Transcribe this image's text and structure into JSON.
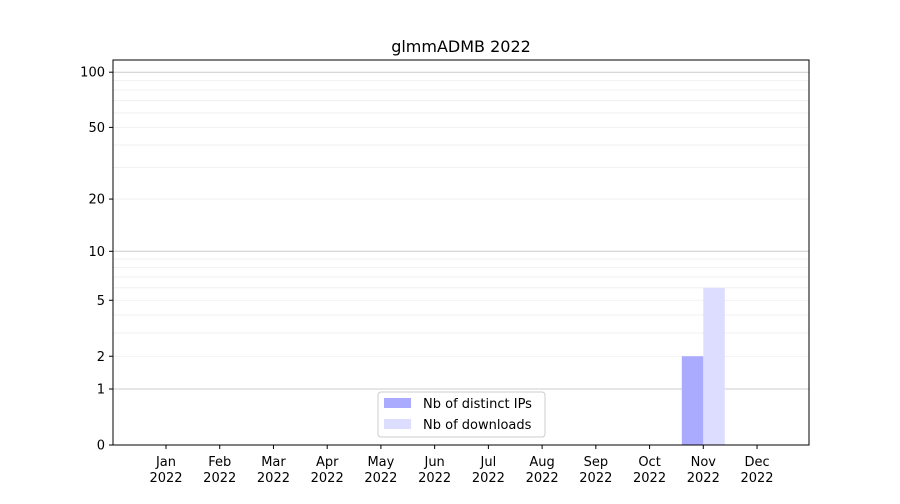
{
  "chart_data": {
    "type": "bar",
    "title": "glmmADMB 2022",
    "xlabel": "",
    "ylabel": "",
    "y_scale": "log(1+y)",
    "ylim": [
      0,
      116
    ],
    "y_ticks": [
      0,
      1,
      2,
      5,
      10,
      20,
      50,
      100
    ],
    "categories": [
      "Jan\n2022",
      "Feb\n2022",
      "Mar\n2022",
      "Apr\n2022",
      "May\n2022",
      "Jun\n2022",
      "Jul\n2022",
      "Aug\n2022",
      "Sep\n2022",
      "Oct\n2022",
      "Nov\n2022",
      "Dec\n2022"
    ],
    "series": [
      {
        "name": "Nb of distinct IPs",
        "color": "#aaaaff",
        "values": [
          0,
          0,
          0,
          0,
          0,
          0,
          0,
          0,
          0,
          0,
          2,
          0
        ]
      },
      {
        "name": "Nb of downloads",
        "color": "#ddddff",
        "values": [
          0,
          0,
          0,
          0,
          0,
          0,
          0,
          0,
          0,
          0,
          6,
          0
        ]
      }
    ],
    "grid": "horizontal major and minor",
    "legend_placement": "lower-center"
  }
}
